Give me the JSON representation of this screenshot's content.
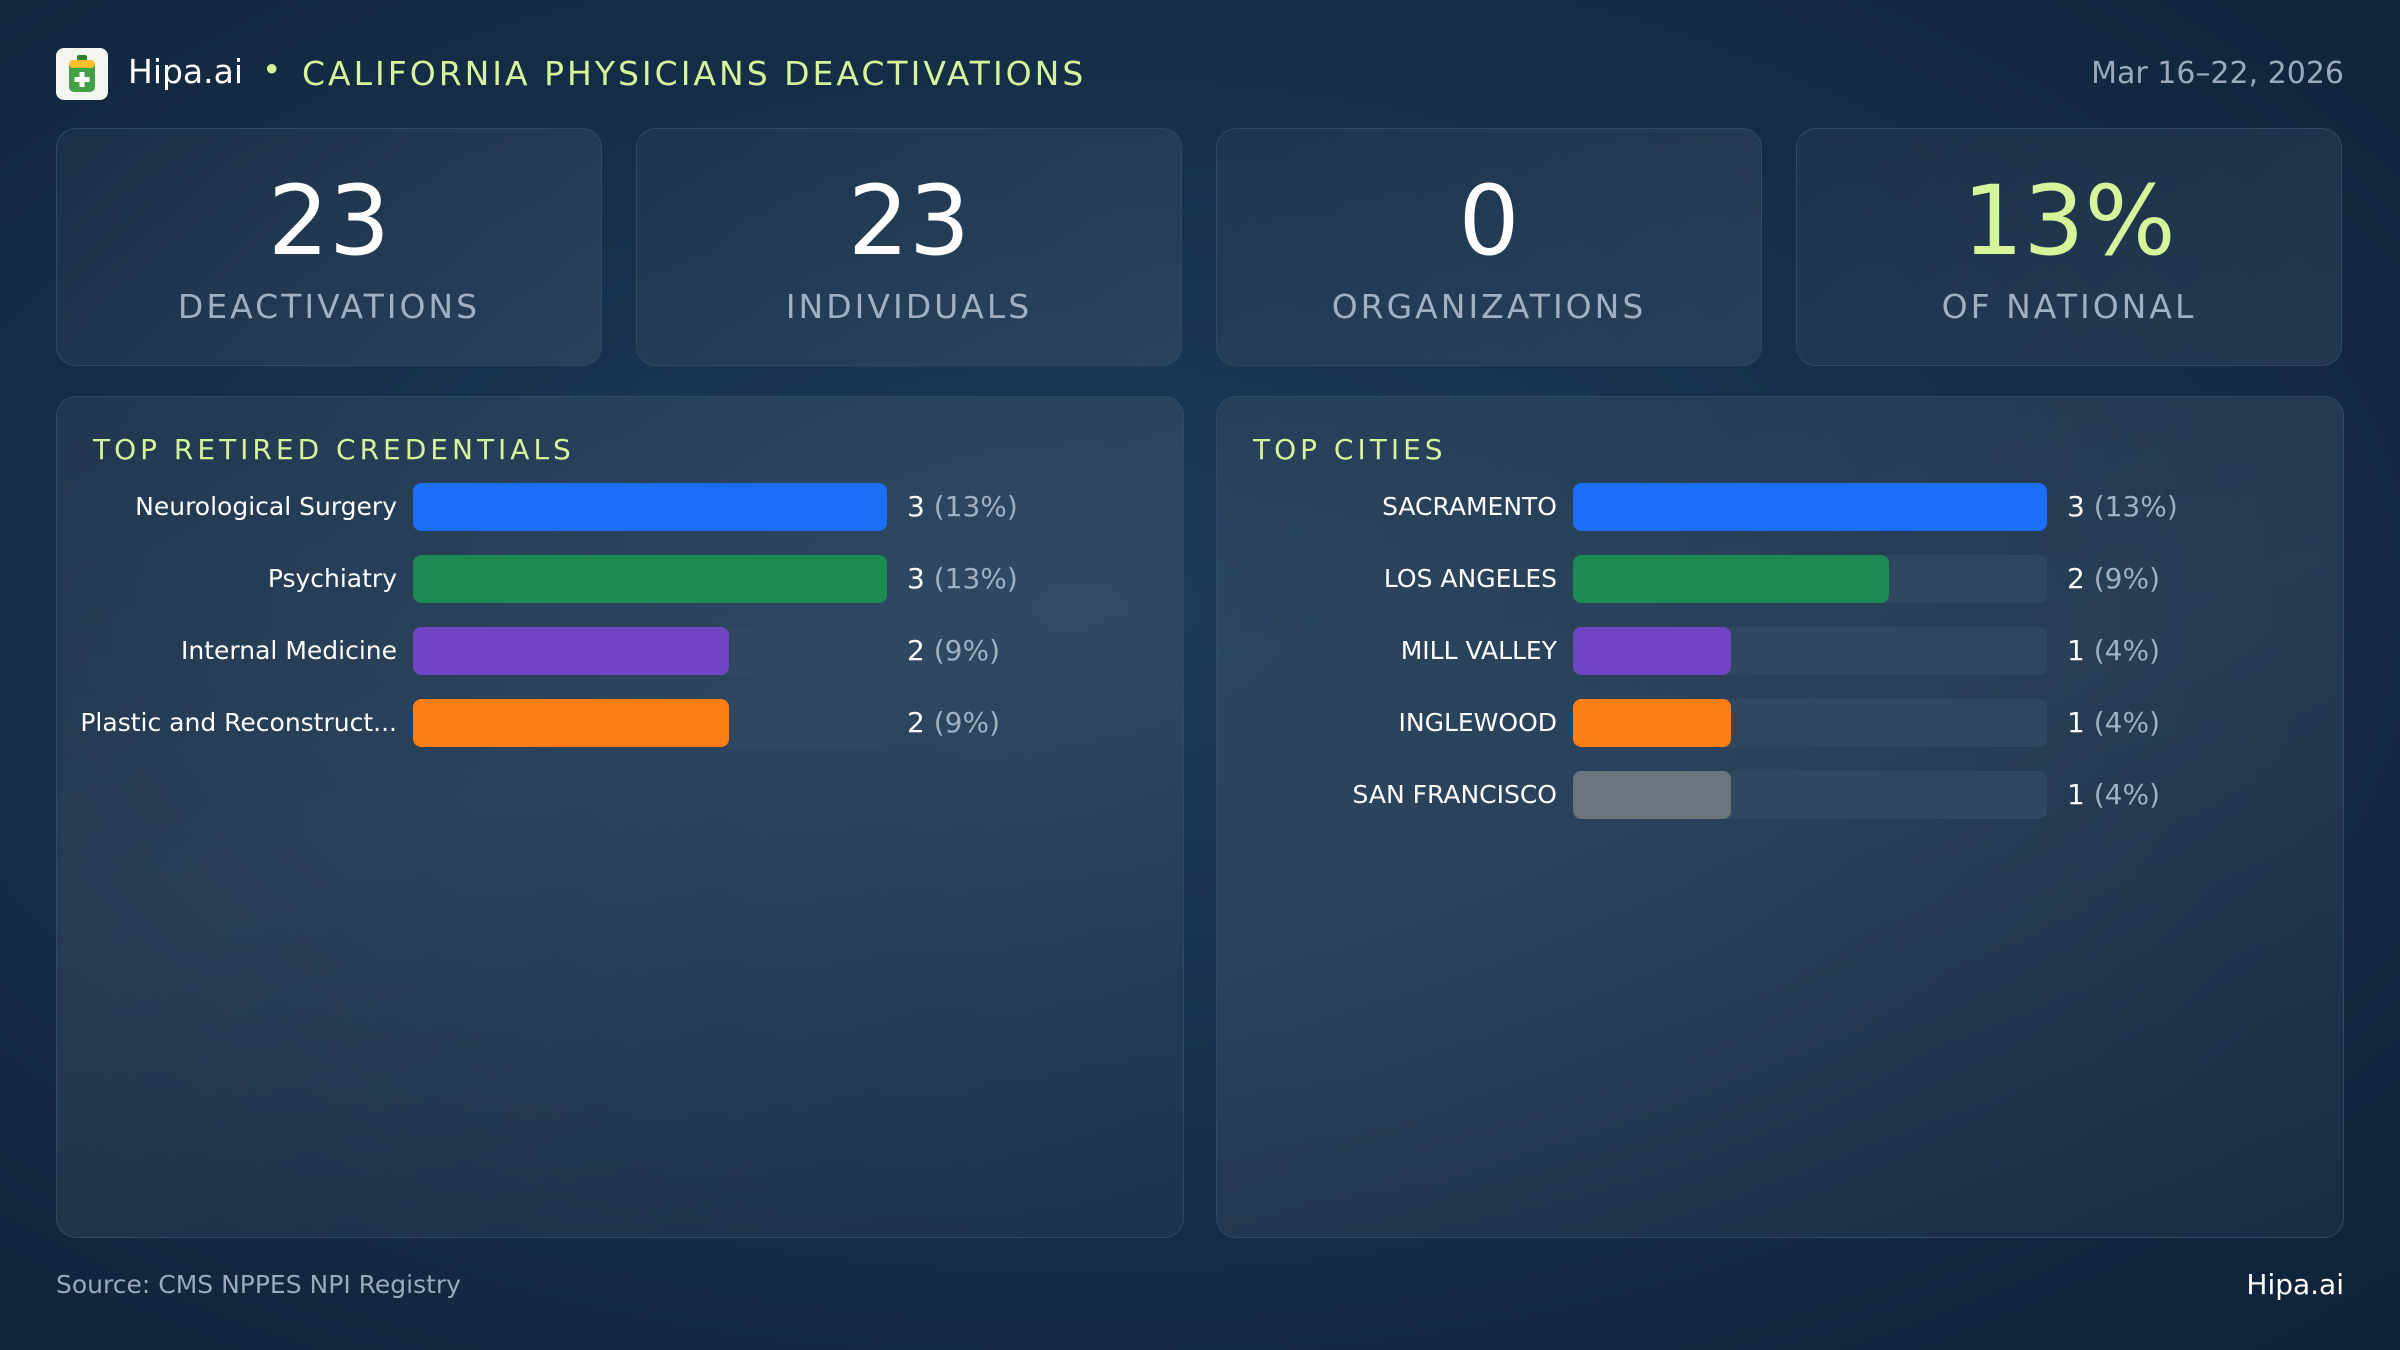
{
  "header": {
    "brand": "Hipa.ai",
    "separator": "•",
    "title": "CALIFORNIA PHYSICIANS DEACTIVATIONS",
    "date_range": "Mar 16–22, 2026",
    "logo_icon": "medical-bag-icon"
  },
  "kpis": [
    {
      "value": "23",
      "label": "DEACTIVATIONS",
      "color": "#ffffff"
    },
    {
      "value": "23",
      "label": "INDIVIDUALS",
      "color": "#ffffff"
    },
    {
      "value": "0",
      "label": "ORGANIZATIONS",
      "color": "#ffffff"
    },
    {
      "value": "13%",
      "label": "OF NATIONAL",
      "color": "#d4f59a"
    }
  ],
  "colors": {
    "accent": "#d4f59a",
    "track": "#304760",
    "blue": "#1a6ef7",
    "green": "#1d8a52",
    "purple": "#6f45c4",
    "orange": "#fd7e14",
    "gray": "#6c757d"
  },
  "chart_data": [
    {
      "type": "bar",
      "orientation": "horizontal",
      "title": "TOP RETIRED CREDENTIALS",
      "categories": [
        "Neurological Surgery",
        "Psychiatry",
        "Internal Medicine",
        "Plastic and Reconstruct..."
      ],
      "values": [
        3,
        3,
        2,
        2
      ],
      "percent_labels": [
        "(13%)",
        "(13%)",
        "(9%)",
        "(9%)"
      ],
      "bar_colors": [
        "#1a6ef7",
        "#1d8a52",
        "#6f45c4",
        "#fd7e14"
      ],
      "xlim": [
        0,
        3
      ],
      "grid": false
    },
    {
      "type": "bar",
      "orientation": "horizontal",
      "title": "TOP CITIES",
      "categories": [
        "SACRAMENTO",
        "LOS ANGELES",
        "MILL VALLEY",
        "INGLEWOOD",
        "SAN FRANCISCO"
      ],
      "values": [
        3,
        2,
        1,
        1,
        1
      ],
      "percent_labels": [
        "(13%)",
        "(9%)",
        "(4%)",
        "(4%)",
        "(4%)"
      ],
      "bar_colors": [
        "#1a6ef7",
        "#1d8a52",
        "#6f45c4",
        "#fd7e14",
        "#6c757d"
      ],
      "xlim": [
        0,
        3
      ],
      "grid": false
    }
  ],
  "footer": {
    "source": "Source: CMS NPPES NPI Registry",
    "brand": "Hipa.ai"
  }
}
